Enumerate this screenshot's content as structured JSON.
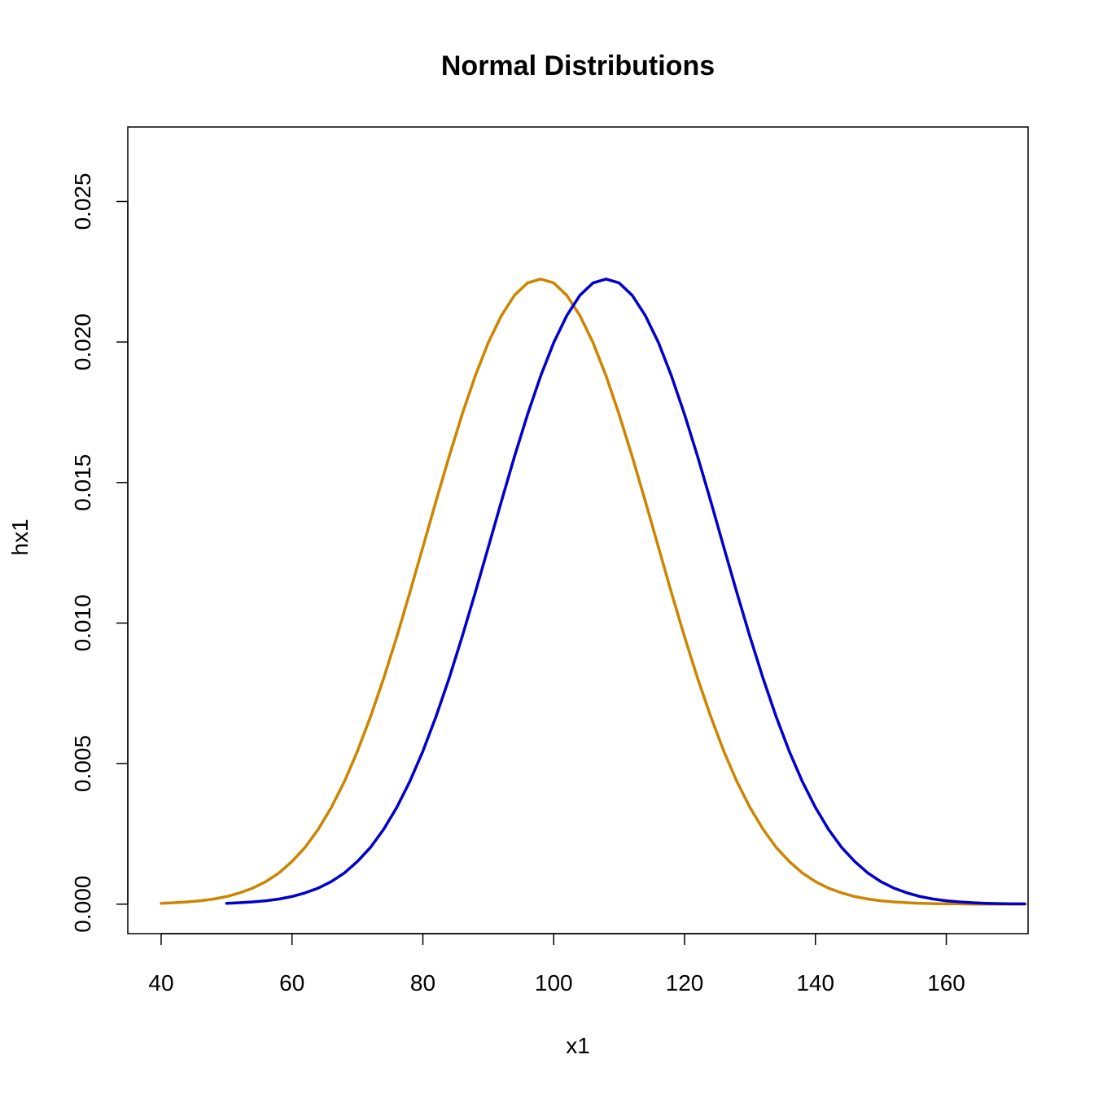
{
  "chart_data": {
    "type": "line",
    "title": "Normal Distributions",
    "xlabel": "x1",
    "ylabel": "hx1",
    "xlim": [
      34.9,
      172.5
    ],
    "ylim": [
      -0.00105,
      0.02765
    ],
    "x_ticks": [
      40,
      60,
      80,
      100,
      120,
      140,
      160
    ],
    "x_tick_labels": [
      "40",
      "60",
      "80",
      "100",
      "120",
      "140",
      "160"
    ],
    "y_ticks": [
      0.0,
      0.005,
      0.01,
      0.015,
      0.02,
      0.025
    ],
    "y_tick_labels": [
      "0.000",
      "0.005",
      "0.010",
      "0.015",
      "0.020",
      "0.025"
    ],
    "grid": false,
    "series": [
      {
        "color": "#cd8500",
        "x": [
          40,
          42,
          44,
          46,
          48,
          50,
          52,
          54,
          56,
          58,
          60,
          62,
          64,
          66,
          68,
          70,
          72,
          74,
          76,
          78,
          80,
          82,
          84,
          86,
          88,
          90,
          92,
          94,
          96,
          98,
          100,
          102,
          104,
          106,
          108,
          110,
          112,
          114,
          116,
          118,
          120,
          122,
          124,
          126,
          128,
          130,
          132,
          134,
          136,
          138,
          140,
          142,
          144,
          146,
          148,
          150,
          152,
          154,
          156,
          158,
          160,
          162,
          164,
          166,
          168,
          170,
          172
        ],
        "values": [
          3e-05,
          5e-05,
          8e-05,
          0.00012,
          0.00018,
          0.00027,
          0.0004,
          0.00057,
          0.0008,
          0.00111,
          0.00152,
          0.00202,
          0.00266,
          0.00344,
          0.00436,
          0.00544,
          0.00667,
          0.00803,
          0.00951,
          0.01108,
          0.0127,
          0.01433,
          0.01592,
          0.01742,
          0.01879,
          0.01998,
          0.02094,
          0.02166,
          0.0221,
          0.02224,
          0.0221,
          0.02166,
          0.02094,
          0.01998,
          0.01879,
          0.01742,
          0.01592,
          0.01433,
          0.0127,
          0.01108,
          0.00951,
          0.00803,
          0.00667,
          0.00544,
          0.00436,
          0.00344,
          0.00266,
          0.00202,
          0.00152,
          0.00111,
          0.0008,
          0.00057,
          0.0004,
          0.00027,
          0.00018,
          0.00012,
          8e-05,
          5e-05,
          3e-05,
          2e-05,
          1e-05,
          1e-05,
          0.0,
          0.0,
          0.0,
          0.0,
          0.0
        ]
      },
      {
        "color": "#0000cd",
        "x": [
          50,
          52,
          54,
          56,
          58,
          60,
          62,
          64,
          66,
          68,
          70,
          72,
          74,
          76,
          78,
          80,
          82,
          84,
          86,
          88,
          90,
          92,
          94,
          96,
          98,
          100,
          102,
          104,
          106,
          108,
          110,
          112,
          114,
          116,
          118,
          120,
          122,
          124,
          126,
          128,
          130,
          132,
          134,
          136,
          138,
          140,
          142,
          144,
          146,
          148,
          150,
          152,
          154,
          156,
          158,
          160,
          162,
          164,
          166,
          168,
          170,
          172
        ],
        "values": [
          3e-05,
          5e-05,
          8e-05,
          0.00012,
          0.00018,
          0.00027,
          0.0004,
          0.00057,
          0.0008,
          0.00111,
          0.00152,
          0.00202,
          0.00266,
          0.00344,
          0.00436,
          0.00544,
          0.00667,
          0.00803,
          0.00951,
          0.01108,
          0.0127,
          0.01433,
          0.01592,
          0.01742,
          0.01879,
          0.01998,
          0.02094,
          0.02166,
          0.0221,
          0.02224,
          0.0221,
          0.02166,
          0.02094,
          0.01998,
          0.01879,
          0.01742,
          0.01592,
          0.01433,
          0.0127,
          0.01108,
          0.00951,
          0.00803,
          0.00667,
          0.00544,
          0.00436,
          0.00344,
          0.00266,
          0.00202,
          0.00152,
          0.00111,
          0.0008,
          0.00057,
          0.0004,
          0.00027,
          0.00018,
          0.00012,
          8e-05,
          5e-05,
          3e-05,
          2e-05,
          1e-05,
          1e-05
        ]
      }
    ]
  }
}
